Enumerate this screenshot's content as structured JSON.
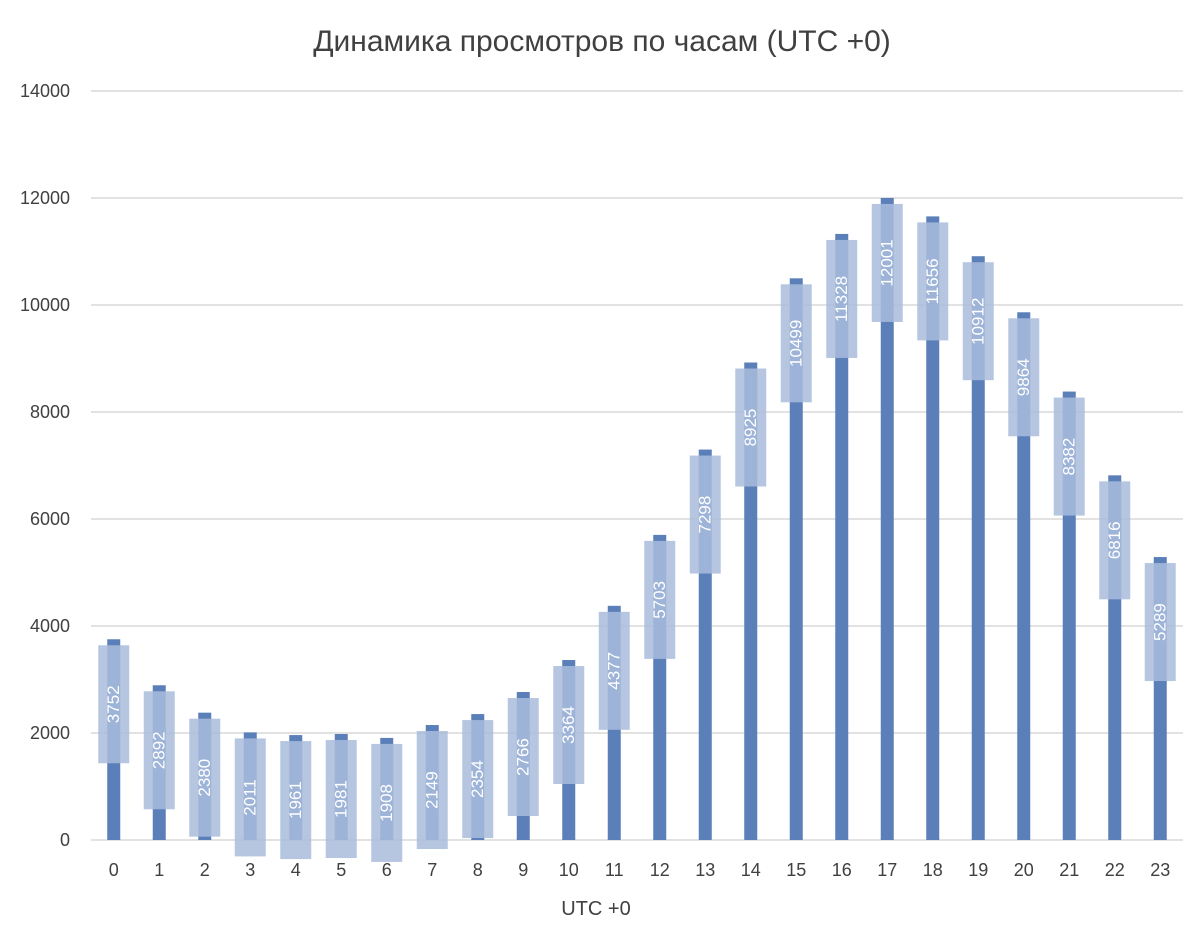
{
  "chart_data": {
    "type": "bar",
    "title": "Динамика просмотров по часам (UTC +0)",
    "xlabel": "UTC +0",
    "ylabel": "",
    "categories": [
      "0",
      "1",
      "2",
      "3",
      "4",
      "5",
      "6",
      "7",
      "8",
      "9",
      "10",
      "11",
      "12",
      "13",
      "14",
      "15",
      "16",
      "17",
      "18",
      "19",
      "20",
      "21",
      "22",
      "23"
    ],
    "values": [
      3752,
      2892,
      2380,
      2011,
      1961,
      1981,
      1908,
      2149,
      2354,
      2766,
      3364,
      4377,
      5703,
      7298,
      8925,
      10499,
      11328,
      12001,
      11656,
      10912,
      9864,
      8382,
      6816,
      5289
    ],
    "ylim": [
      0,
      14000
    ],
    "yticks": [
      "0",
      "2000",
      "4000",
      "6000",
      "8000",
      "10000",
      "12000",
      "14000"
    ],
    "grid": true,
    "legend": "none",
    "colors": {
      "bar": "#5b7fb8",
      "label_box": "#a9bcdc",
      "grid": "#d9d9d9",
      "text": "#404040"
    }
  }
}
